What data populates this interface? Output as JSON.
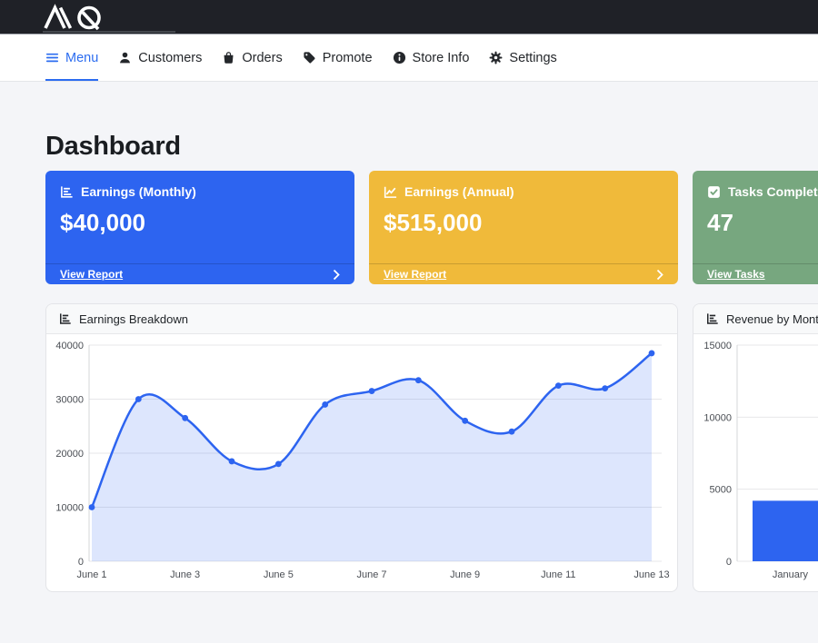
{
  "topbar": {
    "logo_icon": "mq-monogram-logo"
  },
  "nav": {
    "items": [
      {
        "label": "Menu",
        "icon": "hamburger-icon",
        "active": true
      },
      {
        "label": "Customers",
        "icon": "person-icon",
        "active": false
      },
      {
        "label": "Orders",
        "icon": "shopping-bag-icon",
        "active": false
      },
      {
        "label": "Promote",
        "icon": "tag-icon",
        "active": false
      },
      {
        "label": "Store Info",
        "icon": "info-circle-icon",
        "active": false
      },
      {
        "label": "Settings",
        "icon": "gear-icon",
        "active": false
      }
    ],
    "active_color": "#2b6cf0"
  },
  "page": {
    "title": "Dashboard"
  },
  "stat_cards": [
    {
      "title": "Earnings (Monthly)",
      "value": "$40,000",
      "link_label": "View Report",
      "icon": "bar-chart-icon",
      "color": "#2d64f0"
    },
    {
      "title": "Earnings (Annual)",
      "value": "$515,000",
      "link_label": "View Report",
      "icon": "line-chart-icon",
      "color": "#f0ba3a"
    },
    {
      "title": "Tasks Completed",
      "value": "47",
      "link_label": "View Tasks",
      "icon": "check-square-icon",
      "color": "#77a77f"
    }
  ],
  "chart_data": [
    {
      "type": "line",
      "title": "Earnings Breakdown",
      "icon": "bar-chart-icon",
      "x": [
        "June 1",
        "June 2",
        "June 3",
        "June 4",
        "June 5",
        "June 6",
        "June 7",
        "June 8",
        "June 9",
        "June 10",
        "June 11",
        "June 12",
        "June 13"
      ],
      "values": [
        10000,
        30000,
        26500,
        18500,
        18000,
        29000,
        31500,
        33500,
        26000,
        24000,
        32500,
        32000,
        38500
      ],
      "ylim": [
        0,
        40000
      ],
      "yticks": [
        0,
        10000,
        20000,
        30000,
        40000
      ],
      "xtick_every": 2,
      "grid": true,
      "legend": false,
      "line_color": "#2d64f0",
      "fill_color": "rgba(45,100,240,0.16)",
      "point_color": "#2d64f0"
    },
    {
      "type": "bar",
      "title": "Revenue by Month",
      "icon": "bar-chart-icon",
      "categories": [
        "January"
      ],
      "values": [
        4200
      ],
      "ylim": [
        0,
        15000
      ],
      "yticks": [
        0,
        5000,
        10000,
        15000
      ],
      "grid": true,
      "legend": false,
      "bar_color": "#2d64f0"
    }
  ]
}
